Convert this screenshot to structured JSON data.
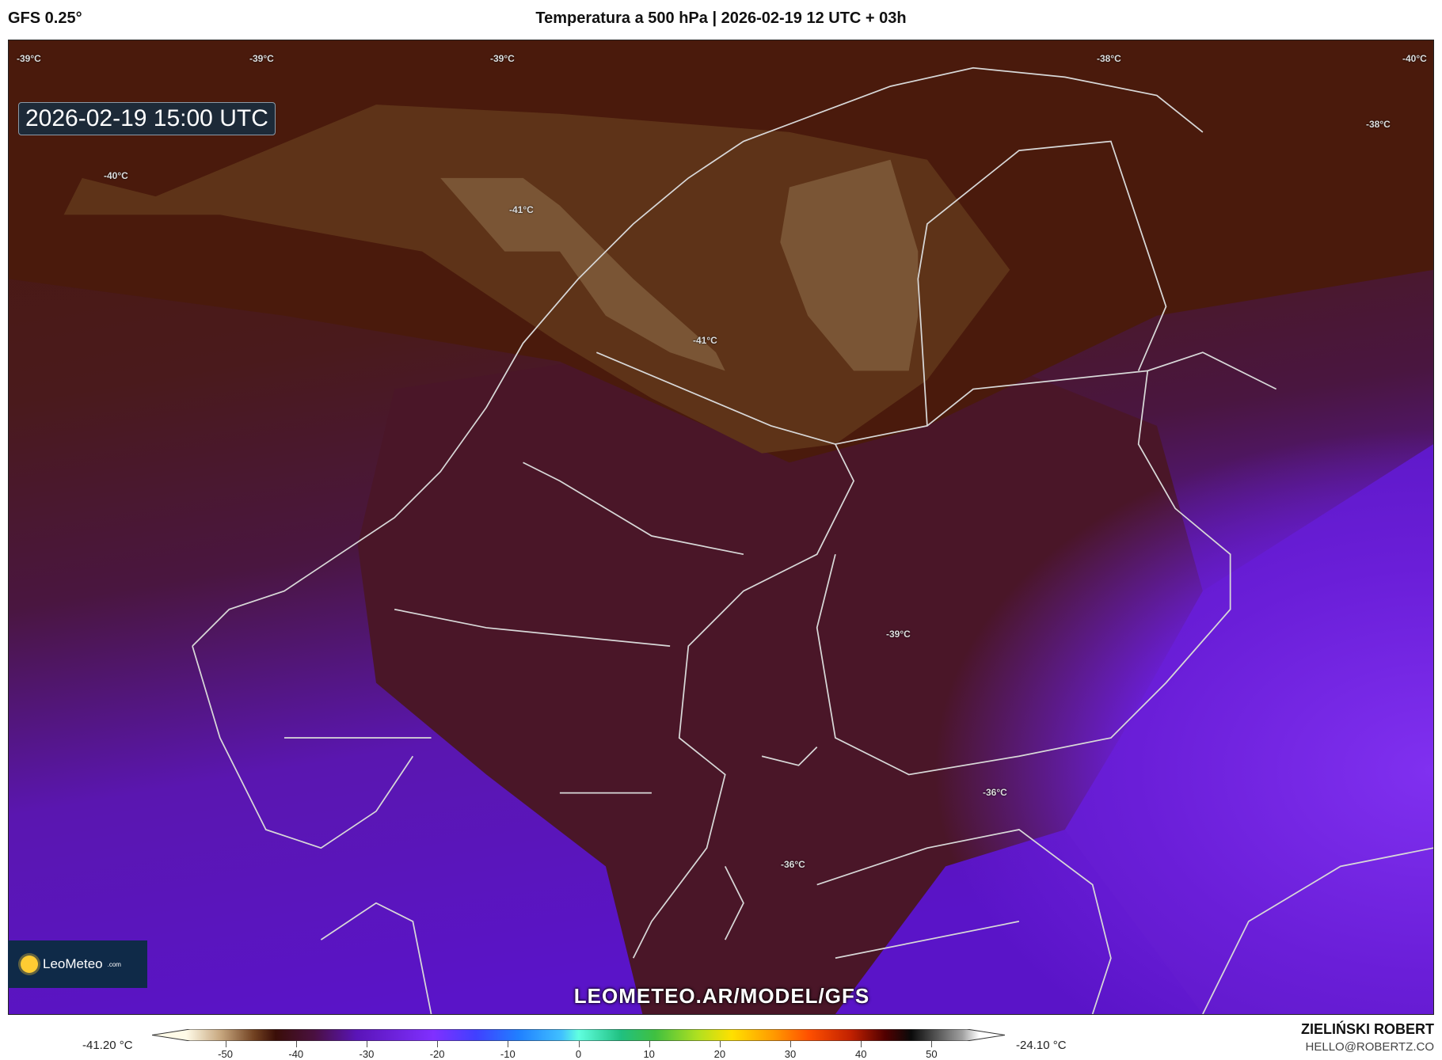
{
  "header": {
    "model": "GFS 0.25°",
    "title": "Temperatura a 500 hPa | 2026-02-19 12 UTC + 03h"
  },
  "map": {
    "valid_time": "2026-02-19 15:00 UTC",
    "watermark": "LEOMETEO.AR/MODEL/GFS",
    "logo": {
      "name": "LeoMeteo",
      "suffix": ".com"
    },
    "region": "Scandinavia / Baltic",
    "contour_labels": [
      "-39°C",
      "-39°C",
      "-39°C",
      "-38°C",
      "-40°C",
      "-38°C",
      "-40°C",
      "-41°C",
      "-41°C",
      "-39°C",
      "-36°C",
      "-36°C"
    ],
    "colors": {
      "cold_core": "#7a5535",
      "brown": "#5a2a14",
      "dark_brown": "#45160c",
      "maroon": "#4a1628",
      "purple": "#5a14c4",
      "bright_purple": "#7a2ae8",
      "borders": "#d8d8d8"
    }
  },
  "colorbar": {
    "min_label": "-41.20 °C",
    "max_label": "-24.10 °C",
    "ticks": [
      "-50",
      "-40",
      "-30",
      "-20",
      "-10",
      "0",
      "10",
      "20",
      "30",
      "40",
      "50"
    ],
    "range": [
      -55,
      55
    ]
  },
  "credits": {
    "author": "ZIELIŃSKI ROBERT",
    "email": "HELLO@ROBERTZ.CO"
  }
}
